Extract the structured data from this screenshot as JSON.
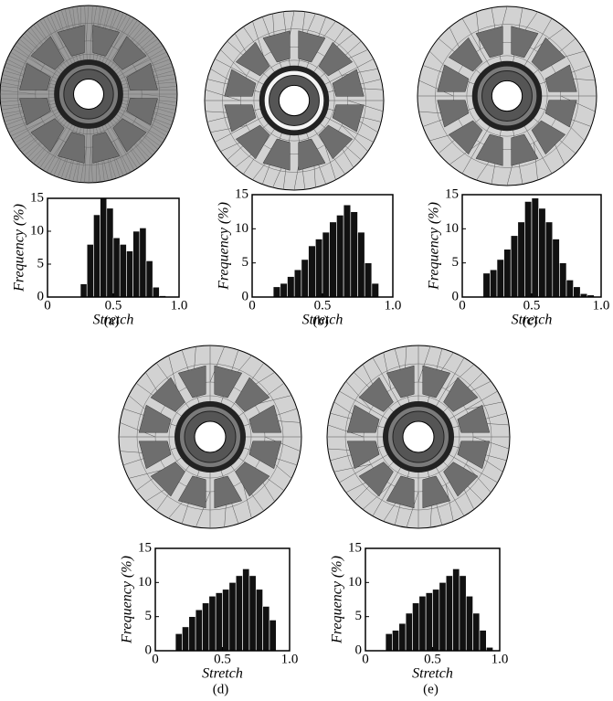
{
  "chart_data": [
    {
      "type": "histogram",
      "xlabel": "Stretch",
      "ylabel": "Frequency (%)",
      "caption": "(a)",
      "bins": [
        0.25,
        0.3,
        0.35,
        0.4,
        0.45,
        0.5,
        0.55,
        0.6,
        0.65,
        0.7,
        0.75,
        0.8,
        0.85,
        0.9
      ],
      "values": [
        2,
        8,
        12.5,
        15,
        13.5,
        9,
        8,
        7,
        10,
        10.5,
        5.5,
        1.5,
        0.2
      ],
      "xlim": [
        0,
        1
      ],
      "ylim": [
        0,
        15
      ],
      "xticks": [
        0,
        0.5,
        {
          "value": 1,
          "label": "1.0"
        }
      ],
      "yticks": [
        0,
        5,
        10,
        15
      ],
      "color": "#111111"
    },
    {
      "type": "histogram",
      "xlabel": "Stretch",
      "ylabel": "Frequency (%)",
      "caption": "(b)",
      "bins": [
        0.15,
        0.2,
        0.25,
        0.3,
        0.35,
        0.4,
        0.45,
        0.5,
        0.55,
        0.6,
        0.65,
        0.7,
        0.75,
        0.8,
        0.85,
        0.9
      ],
      "values": [
        1.5,
        2,
        3,
        4,
        5.5,
        7.5,
        8.5,
        9.5,
        11,
        12,
        13.5,
        12.5,
        9.5,
        5,
        2
      ],
      "xlim": [
        0,
        1
      ],
      "ylim": [
        0,
        15
      ],
      "xticks": [
        0,
        0.5,
        {
          "value": 1,
          "label": "1.0"
        }
      ],
      "yticks": [
        0,
        5,
        10,
        15
      ],
      "color": "#111111"
    },
    {
      "type": "histogram",
      "xlabel": "Stretch",
      "ylabel": "Frequency (%)",
      "caption": "(c)",
      "bins": [
        0.15,
        0.2,
        0.25,
        0.3,
        0.35,
        0.4,
        0.45,
        0.5,
        0.55,
        0.6,
        0.65,
        0.7,
        0.75,
        0.8,
        0.85,
        0.9,
        0.95
      ],
      "values": [
        3.5,
        4,
        5.5,
        7,
        9,
        11,
        14,
        14.5,
        13,
        11,
        8.5,
        5,
        2.5,
        1.5,
        0.5,
        0.3
      ],
      "xlim": [
        0,
        1
      ],
      "ylim": [
        0,
        15
      ],
      "xticks": [
        0,
        0.5,
        {
          "value": 1,
          "label": "1.0"
        }
      ],
      "yticks": [
        0,
        5,
        10,
        15
      ],
      "color": "#111111"
    },
    {
      "type": "histogram",
      "xlabel": "Stretch",
      "ylabel": "Frequency (%)",
      "caption": "(d)",
      "bins": [
        0.15,
        0.2,
        0.25,
        0.3,
        0.35,
        0.4,
        0.45,
        0.5,
        0.55,
        0.6,
        0.65,
        0.7,
        0.75,
        0.8,
        0.85,
        0.9
      ],
      "values": [
        2.5,
        3.5,
        5,
        6,
        7,
        8,
        8.5,
        9,
        10,
        11,
        12,
        11,
        9,
        6.5,
        4.5
      ],
      "xlim": [
        0,
        1
      ],
      "ylim": [
        0,
        15
      ],
      "xticks": [
        0,
        0.5,
        {
          "value": 1,
          "label": "1.0"
        }
      ],
      "yticks": [
        0,
        5,
        10,
        15
      ],
      "color": "#111111"
    },
    {
      "type": "histogram",
      "xlabel": "Stretch",
      "ylabel": "Frequency (%)",
      "caption": "(e)",
      "bins": [
        0.15,
        0.2,
        0.25,
        0.3,
        0.35,
        0.4,
        0.45,
        0.5,
        0.55,
        0.6,
        0.65,
        0.7,
        0.75,
        0.8,
        0.85,
        0.9,
        0.95
      ],
      "values": [
        2.5,
        3,
        4,
        5.5,
        7,
        8,
        8.5,
        9,
        10,
        11,
        12,
        11,
        8,
        5.5,
        3,
        0.5
      ],
      "xlim": [
        0,
        1
      ],
      "ylim": [
        0,
        15
      ],
      "xticks": [
        0,
        0.5,
        {
          "value": 1,
          "label": "1.0"
        }
      ],
      "yticks": [
        0,
        5,
        10,
        15
      ],
      "color": "#111111"
    }
  ]
}
